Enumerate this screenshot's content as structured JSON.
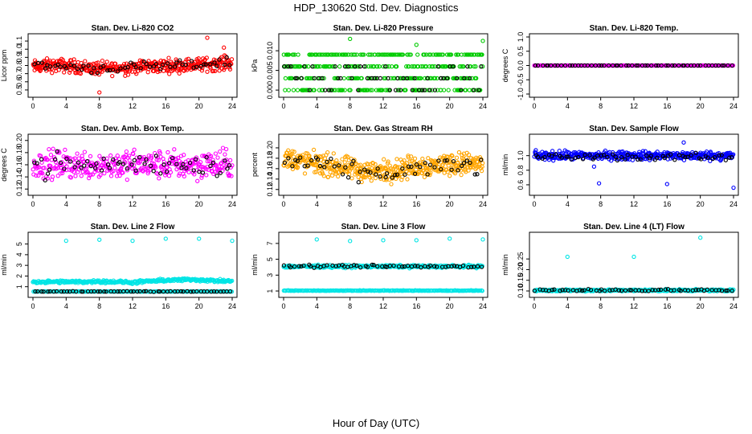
{
  "figure": {
    "title": "HDP_130620  Std. Dev. Diagnostics",
    "xlabel": "Hour of Day (UTC)"
  },
  "chart_data": [
    {
      "id": "p1",
      "type": "scatter",
      "title": "Stan. Dev. Li-820 CO2",
      "ylabel": "Licor ppm",
      "xlim": [
        0,
        24
      ],
      "ylim": [
        0.45,
        1.15
      ],
      "xticks": [
        0,
        4,
        8,
        12,
        16,
        20,
        24
      ],
      "yticks": [
        0.5,
        0.6,
        0.7,
        0.8,
        0.9,
        1.0,
        1.1
      ],
      "ytick_labels": [
        "0.5",
        "0.6",
        "0.7",
        "0.8",
        "0.9",
        "1.0",
        "1.1"
      ],
      "series": [
        {
          "color": "#ff0000",
          "count": 420,
          "mean": 0.8,
          "spread": 0.07,
          "base_values": [
            0.78,
            0.8,
            0.8,
            0.78,
            0.76,
            0.77,
            0.78,
            0.79,
            0.8,
            0.8,
            0.81,
            0.82,
            0.84
          ],
          "outliers": [
            [
              21.0,
              1.14
            ],
            [
              8.0,
              0.47
            ],
            [
              23.0,
              1.02
            ]
          ]
        },
        {
          "color": "#000000",
          "count": 60,
          "mean": 0.8,
          "spread": 0.05,
          "base_values": [
            0.8,
            0.8,
            0.79,
            0.78,
            0.76,
            0.77,
            0.78,
            0.78,
            0.79,
            0.8,
            0.81,
            0.84,
            0.84
          ]
        }
      ]
    },
    {
      "id": "p2",
      "type": "scatter",
      "title": "Stan. Dev. Li-820 Pressure",
      "ylabel": "kPa",
      "xlim": [
        0,
        24
      ],
      "ylim": [
        -0.001,
        0.0135
      ],
      "xticks": [
        0,
        4,
        8,
        12,
        16,
        20,
        24
      ],
      "yticks": [
        0.0,
        0.005,
        0.01
      ],
      "ytick_labels": [
        "0.000",
        "0.005",
        "0.010"
      ],
      "series": [
        {
          "color": "#00cc00",
          "count": 420,
          "levels": [
            0.0,
            0.003,
            0.006,
            0.009
          ],
          "outliers": [
            [
              8.0,
              0.013
            ],
            [
              16.0,
              0.0115
            ],
            [
              24.0,
              0.0125
            ],
            [
              20.0,
              0.009
            ]
          ]
        },
        {
          "color": "#000000",
          "count": 60,
          "levels": [
            0.0,
            0.003,
            0.006
          ]
        }
      ]
    },
    {
      "id": "p3",
      "type": "scatter",
      "title": "Stan. Dev. Li-820 Temp.",
      "ylabel": "degrees C",
      "xlim": [
        0,
        24
      ],
      "ylim": [
        -1.0,
        1.0
      ],
      "xticks": [
        0,
        4,
        8,
        12,
        16,
        20,
        24
      ],
      "yticks": [
        -1.0,
        -0.5,
        0.0,
        0.5,
        1.0
      ],
      "ytick_labels": [
        "-1.0",
        "-0.5",
        "0.0",
        "0.5",
        "1.0"
      ],
      "series": [
        {
          "color": "#ff00ff",
          "count": 400,
          "levels": [
            0.0
          ]
        },
        {
          "color": "#000000",
          "count": 60,
          "levels": [
            0.0
          ]
        }
      ]
    },
    {
      "id": "p4",
      "type": "scatter",
      "title": "Stan. Dev. Amb. Box Temp.",
      "ylabel": "degrees C",
      "xlim": [
        0,
        24
      ],
      "ylim": [
        0.115,
        0.205
      ],
      "xticks": [
        0,
        4,
        8,
        12,
        16,
        20,
        24
      ],
      "yticks": [
        0.12,
        0.14,
        0.16,
        0.18,
        0.2
      ],
      "ytick_labels": [
        "0.12",
        "0.14",
        "0.16",
        "0.18",
        "0.20"
      ],
      "series": [
        {
          "color": "#ff00ff",
          "count": 380,
          "mean": 0.16,
          "spread": 0.02
        },
        {
          "color": "#000000",
          "count": 60,
          "mean": 0.16,
          "spread": 0.017
        }
      ]
    },
    {
      "id": "p5",
      "type": "scatter",
      "title": "Stan. Dev. Gas Stream RH",
      "ylabel": "percent",
      "xlim": [
        0,
        24
      ],
      "ylim": [
        0.115,
        0.22
      ],
      "xticks": [
        0,
        4,
        8,
        12,
        16,
        20,
        24
      ],
      "yticks": [
        0.12,
        0.14,
        0.16,
        0.18,
        0.2
      ],
      "ytick_labels": [
        "0.12",
        "0.14",
        "0.16",
        "0.18",
        "0.20"
      ],
      "series": [
        {
          "color": "#ffa500",
          "count": 460,
          "mean": 0.165,
          "spread": 0.018,
          "base_values": [
            0.18,
            0.175,
            0.17,
            0.165,
            0.16,
            0.155,
            0.155,
            0.16,
            0.165,
            0.165,
            0.17,
            0.17,
            0.17
          ]
        },
        {
          "color": "#000000",
          "count": 60,
          "mean": 0.16,
          "spread": 0.015,
          "base_values": [
            0.175,
            0.17,
            0.165,
            0.16,
            0.155,
            0.15,
            0.15,
            0.155,
            0.16,
            0.16,
            0.165,
            0.165,
            0.165
          ]
        }
      ]
    },
    {
      "id": "p6",
      "type": "scatter",
      "title": "Stan. Dev. Sample Flow",
      "ylabel": "ml/min",
      "xlim": [
        0,
        24
      ],
      "ylim": [
        0.5,
        1.25
      ],
      "xticks": [
        0,
        4,
        8,
        12,
        16,
        20,
        24
      ],
      "yticks": [
        0.6,
        0.8,
        1.0
      ],
      "ytick_labels": [
        "0.6",
        "0.8",
        "1.0"
      ],
      "series": [
        {
          "color": "#0000ff",
          "count": 420,
          "mean": 1.0,
          "spread": 0.05,
          "outliers": [
            [
              7.8,
              0.62
            ],
            [
              16.0,
              0.61
            ],
            [
              24.0,
              0.56
            ],
            [
              7.2,
              0.85
            ],
            [
              18.0,
              1.18
            ]
          ]
        },
        {
          "color": "#000000",
          "count": 60,
          "mean": 0.98,
          "spread": 0.04
        }
      ]
    },
    {
      "id": "p7",
      "type": "scatter",
      "title": "Stan. Dev. Line 2 Flow",
      "ylabel": "ml/min",
      "xlim": [
        0,
        24
      ],
      "ylim": [
        0.3,
        5.8
      ],
      "xticks": [
        0,
        4,
        8,
        12,
        16,
        20,
        24
      ],
      "yticks": [
        1,
        2,
        3,
        4,
        5
      ],
      "ytick_labels": [
        "1",
        "2",
        "3",
        "4",
        "5"
      ],
      "series": [
        {
          "color": "#00e5e5",
          "count": 320,
          "mean": 1.5,
          "spread": 0.12,
          "base_values": [
            1.45,
            1.45,
            1.45,
            1.45,
            1.5,
            1.45,
            1.4,
            1.5,
            1.6,
            1.65,
            1.65,
            1.55,
            1.5
          ],
          "outliers": [
            [
              4.0,
              5.3
            ],
            [
              8.0,
              5.4
            ],
            [
              12.0,
              5.3
            ],
            [
              16.0,
              5.5
            ],
            [
              20.0,
              5.5
            ],
            [
              24.0,
              5.3
            ]
          ]
        },
        {
          "color": "#00e5e5",
          "count": 200,
          "mean": 0.55,
          "spread": 0.02
        },
        {
          "color": "#000000",
          "count": 60,
          "mean": 0.55,
          "spread": 0.02
        }
      ]
    },
    {
      "id": "p8",
      "type": "scatter",
      "title": "Stan. Dev. Line 3 Flow",
      "ylabel": "ml/min",
      "xlim": [
        0,
        24
      ],
      "ylim": [
        0.6,
        8.0
      ],
      "xticks": [
        0,
        4,
        8,
        12,
        16,
        20,
        24
      ],
      "yticks": [
        1,
        3,
        5,
        7
      ],
      "ytick_labels": [
        "1",
        "3",
        "5",
        "7"
      ],
      "series": [
        {
          "color": "#00e5e5",
          "count": 300,
          "mean": 4.1,
          "spread": 0.15,
          "outliers": [
            [
              4.0,
              7.5
            ],
            [
              8.0,
              7.3
            ],
            [
              12.0,
              7.4
            ],
            [
              16.0,
              7.4
            ],
            [
              20.0,
              7.6
            ],
            [
              24.0,
              7.5
            ]
          ]
        },
        {
          "color": "#00e5e5",
          "count": 200,
          "mean": 1.05,
          "spread": 0.03
        },
        {
          "color": "#000000",
          "count": 60,
          "mean": 4.1,
          "spread": 0.15
        }
      ]
    },
    {
      "id": "p9",
      "type": "scatter",
      "title": "Stan. Dev. Line 4 (LT) Flow",
      "ylabel": "ml/min",
      "xlim": [
        0,
        24
      ],
      "ylim": [
        0.085,
        0.36
      ],
      "xticks": [
        0,
        4,
        8,
        12,
        16,
        20,
        24
      ],
      "yticks": [
        0.1,
        0.15,
        0.2,
        0.25
      ],
      "ytick_labels": [
        "0.10",
        "0.15",
        "0.20",
        "0.25"
      ],
      "series": [
        {
          "color": "#00e5e5",
          "count": 400,
          "mean": 0.103,
          "spread": 0.004,
          "outliers": [
            [
              4.0,
              0.26
            ],
            [
              12.0,
              0.26
            ],
            [
              20.0,
              0.35
            ]
          ]
        },
        {
          "color": "#000000",
          "count": 60,
          "mean": 0.104,
          "spread": 0.004
        }
      ]
    }
  ]
}
